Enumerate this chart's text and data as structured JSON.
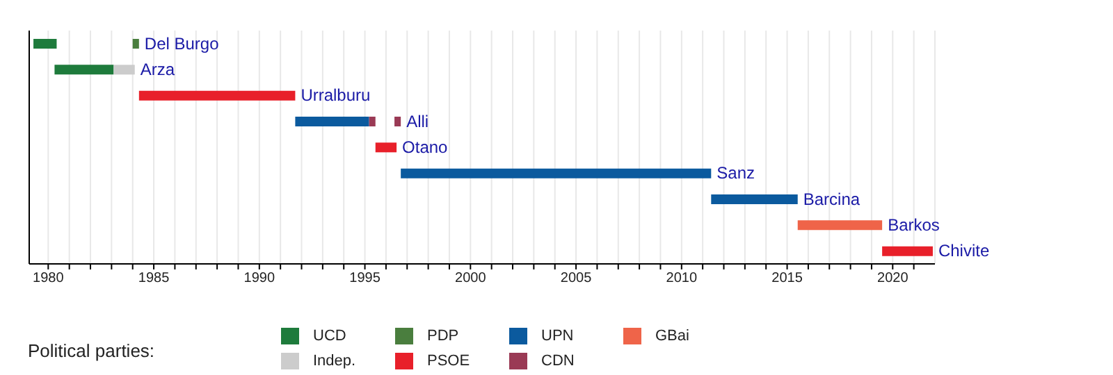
{
  "chart_data": {
    "type": "bar",
    "orientation": "horizontal",
    "legend_title": "Political parties:",
    "categories": [
      "Del Burgo",
      "Arza",
      "Urralburu",
      "Alli",
      "Otano",
      "Sanz",
      "Barcina",
      "Barkos",
      "Chivite"
    ],
    "xlim": [
      1979.1,
      2022
    ],
    "xticks": [
      1980,
      {
        "value": 1981,
        "label": null
      },
      {
        "value": 1982,
        "label": null
      },
      {
        "value": 1983,
        "label": null
      },
      {
        "value": 1984,
        "label": null
      },
      1985,
      {
        "value": 1986,
        "label": null
      },
      {
        "value": 1987,
        "label": null
      },
      {
        "value": 1988,
        "label": null
      },
      {
        "value": 1989,
        "label": null
      },
      1990,
      {
        "value": 1991,
        "label": null
      },
      {
        "value": 1992,
        "label": null
      },
      {
        "value": 1993,
        "label": null
      },
      {
        "value": 1994,
        "label": null
      },
      1995,
      {
        "value": 1996,
        "label": null
      },
      {
        "value": 1997,
        "label": null
      },
      {
        "value": 1998,
        "label": null
      },
      {
        "value": 1999,
        "label": null
      },
      2000,
      {
        "value": 2001,
        "label": null
      },
      {
        "value": 2002,
        "label": null
      },
      {
        "value": 2003,
        "label": null
      },
      {
        "value": 2004,
        "label": null
      },
      2005,
      {
        "value": 2006,
        "label": null
      },
      {
        "value": 2007,
        "label": null
      },
      {
        "value": 2008,
        "label": null
      },
      {
        "value": 2009,
        "label": null
      },
      2010,
      {
        "value": 2011,
        "label": null
      },
      {
        "value": 2012,
        "label": null
      },
      {
        "value": 2013,
        "label": null
      },
      {
        "value": 2014,
        "label": null
      },
      2015,
      {
        "value": 2016,
        "label": null
      },
      {
        "value": 2017,
        "label": null
      },
      {
        "value": 2018,
        "label": null
      },
      {
        "value": 2019,
        "label": null
      },
      2020,
      {
        "value": 2021,
        "label": null
      }
    ],
    "grid": "x",
    "legend": "bottom",
    "tick_labels": "x",
    "series": [
      {
        "name": "UCD",
        "color": "#1e7b3c",
        "base": [
          1979.3,
          1980.3,
          null,
          null,
          null,
          null,
          null,
          null,
          null
        ],
        "values": [
          1.1,
          2.8,
          null,
          null,
          null,
          null,
          null,
          null,
          null
        ]
      },
      {
        "name": "Indep.",
        "color": "#cccccc",
        "base": [
          null,
          1983.1,
          null,
          null,
          null,
          null,
          null,
          null,
          null
        ],
        "values": [
          null,
          1.0,
          null,
          null,
          null,
          null,
          null,
          null,
          null
        ]
      },
      {
        "name": "PDP",
        "color": "#4a7e3e",
        "base": [
          1984.0,
          null,
          null,
          null,
          null,
          null,
          null,
          null,
          null
        ],
        "values": [
          0.3,
          null,
          null,
          null,
          null,
          null,
          null,
          null,
          null
        ]
      },
      {
        "name": "PSOE",
        "color": "#e8202a",
        "base": [
          null,
          null,
          1984.3,
          null,
          1995.5,
          null,
          null,
          null,
          2019.5
        ],
        "values": [
          null,
          null,
          7.4,
          null,
          1.0,
          null,
          null,
          null,
          2.4
        ]
      },
      {
        "name": "UPN",
        "color": "#0b5a9e",
        "base": [
          null,
          null,
          null,
          1991.7,
          null,
          1996.7,
          2011.4,
          null,
          null
        ],
        "values": [
          null,
          null,
          null,
          3.5,
          null,
          14.7,
          4.1,
          null,
          null
        ]
      },
      {
        "name": "CDN",
        "color": "#9a3a55",
        "base": [
          null,
          null,
          null,
          1995.2,
          null,
          null,
          null,
          null,
          null
        ],
        "values": [
          null,
          null,
          null,
          0.3,
          null,
          null,
          null,
          null,
          null
        ]
      },
      {
        "name": "GBai",
        "color": "#ef6449",
        "base": [
          null,
          null,
          null,
          null,
          null,
          null,
          null,
          2015.5,
          null
        ],
        "values": [
          null,
          null,
          null,
          null,
          null,
          null,
          null,
          4.0,
          null
        ]
      },
      {
        "color": "#9a3a55",
        "base": [
          null,
          null,
          null,
          1996.4,
          null,
          null,
          null,
          null,
          null
        ],
        "values": [
          null,
          null,
          null,
          0.3,
          null,
          null,
          null,
          null,
          null
        ]
      }
    ]
  }
}
